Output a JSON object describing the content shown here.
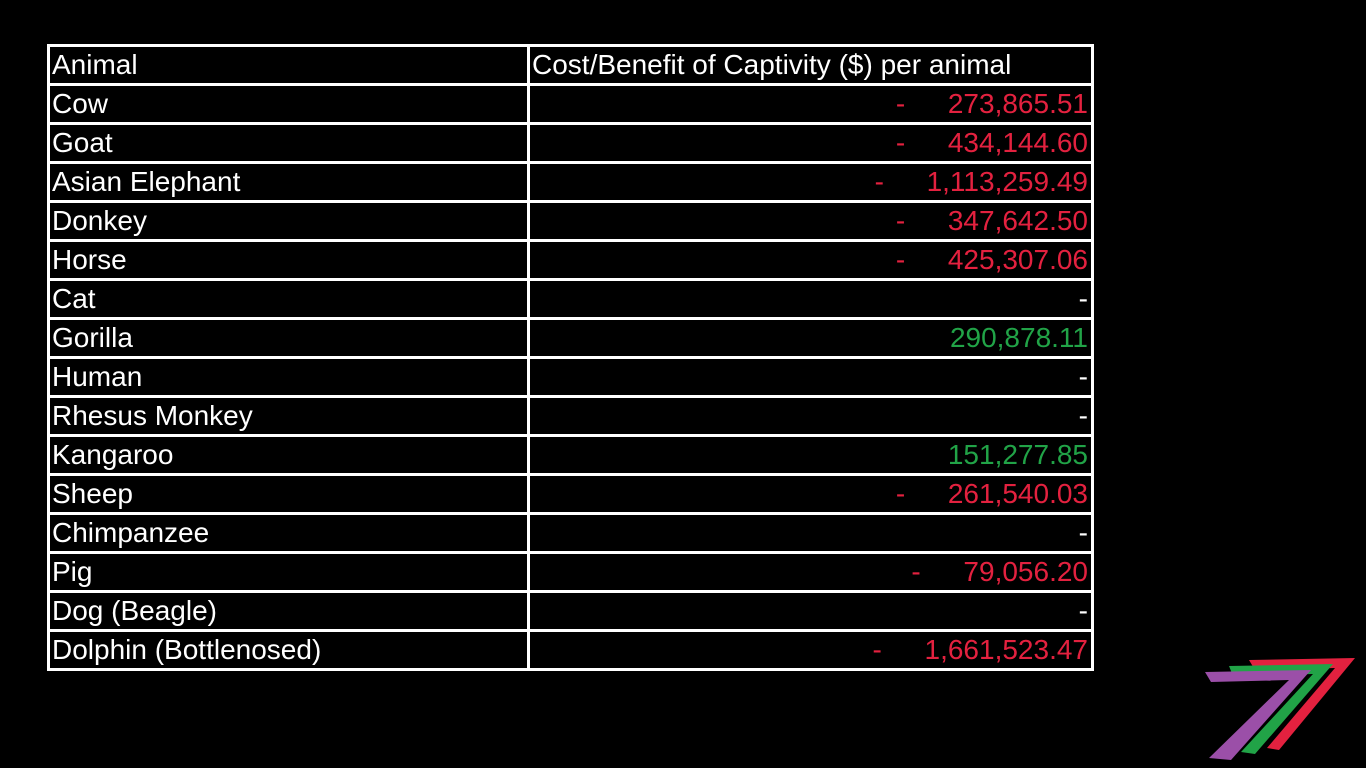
{
  "table": {
    "headers": [
      "Animal",
      "Cost/Benefit of Captivity ($) per animal"
    ],
    "rows": [
      {
        "animal": "Cow",
        "sign": "-",
        "value": "273,865.51",
        "status": "neg"
      },
      {
        "animal": "Goat",
        "sign": "-",
        "value": "434,144.60",
        "status": "neg"
      },
      {
        "animal": "Asian Elephant",
        "sign": "-",
        "value": "1,113,259.49",
        "status": "neg"
      },
      {
        "animal": "Donkey",
        "sign": "-",
        "value": "347,642.50",
        "status": "neg"
      },
      {
        "animal": "Horse",
        "sign": "-",
        "value": "425,307.06",
        "status": "neg"
      },
      {
        "animal": "Cat",
        "sign": "",
        "value": "-",
        "status": "none"
      },
      {
        "animal": "Gorilla",
        "sign": "",
        "value": "290,878.11",
        "status": "pos"
      },
      {
        "animal": "Human",
        "sign": "",
        "value": "-",
        "status": "none"
      },
      {
        "animal": "Rhesus Monkey",
        "sign": "",
        "value": "-",
        "status": "none"
      },
      {
        "animal": "Kangaroo",
        "sign": "",
        "value": "151,277.85",
        "status": "pos"
      },
      {
        "animal": "Sheep",
        "sign": "-",
        "value": "261,540.03",
        "status": "neg"
      },
      {
        "animal": "Chimpanzee",
        "sign": "",
        "value": "-",
        "status": "none"
      },
      {
        "animal": "Pig",
        "sign": "-",
        "value": "79,056.20",
        "status": "neg"
      },
      {
        "animal": "Dog (Beagle)",
        "sign": "",
        "value": "-",
        "status": "none"
      },
      {
        "animal": "Dolphin (Bottlenosed)",
        "sign": "-",
        "value": "1,661,523.47",
        "status": "neg"
      }
    ]
  },
  "colors": {
    "background": "#000000",
    "border": "#ffffff",
    "text": "#ffffff",
    "negative": "#e3213f",
    "positive": "#21a347"
  },
  "logo": {
    "icon": "seven-stripe-logo-icon",
    "stripe_colors": [
      "#e3213f",
      "#21a347",
      "#9b4fa8"
    ]
  }
}
